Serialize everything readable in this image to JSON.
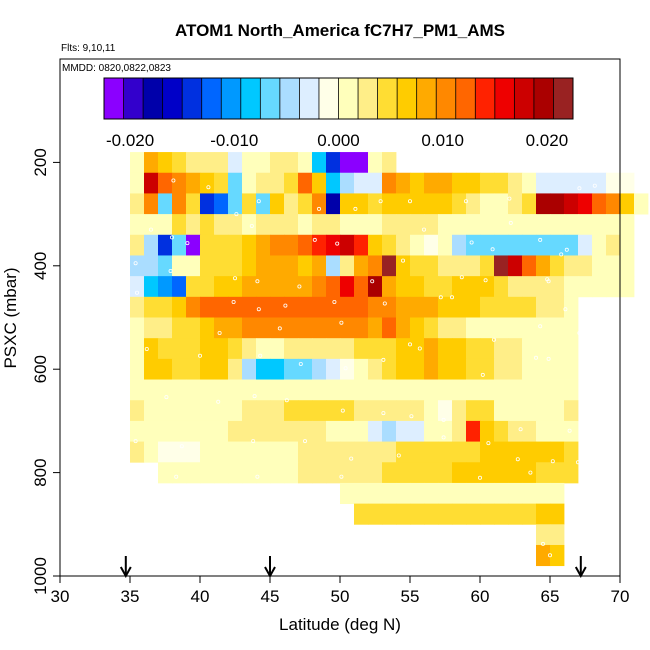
{
  "chart_data": {
    "type": "heatmap",
    "title": "ATOM1 North_America fC7H7_PM1_AMS",
    "flights_label": "Flts: 9,10,11",
    "dates_label": "MMDD: 0820,0822,0823",
    "xlabel": "Latitude (deg N)",
    "ylabel": "PSXC (mbar)",
    "xlim": [
      30,
      70
    ],
    "ylim": [
      1000,
      0
    ],
    "x_ticks": [
      30,
      35,
      40,
      45,
      50,
      55,
      60,
      65,
      70
    ],
    "y_ticks": [
      200,
      400,
      600,
      800,
      1000
    ],
    "x_tick_labels": [
      "30",
      "35",
      "40",
      "45",
      "50",
      "55",
      "60",
      "65",
      "70"
    ],
    "y_tick_labels": [
      "200",
      "400",
      "600",
      "800",
      "1000"
    ],
    "colorbar": {
      "range": [
        -0.0225,
        0.0225
      ],
      "tick_values": [
        -0.02,
        -0.01,
        0.0,
        0.01,
        0.02
      ],
      "tick_labels": [
        "-0.020",
        "-0.010",
        "0.000",
        "0.010",
        "0.020"
      ],
      "colors": [
        "#8B00FF",
        "#3300CC",
        "#0000AA",
        "#0000C8",
        "#0030E0",
        "#0066FF",
        "#0099FF",
        "#00C8FF",
        "#66D9FF",
        "#AADDFF",
        "#DDEEFF",
        "#FFFFE8",
        "#FFFFBB",
        "#FFEE88",
        "#FFDD33",
        "#FFCC00",
        "#FFAA00",
        "#FF8800",
        "#FF6600",
        "#FF2200",
        "#EE0000",
        "#CC0000",
        "#AA0000",
        "#992222"
      ]
    },
    "row_height_mbar": 40,
    "col_width_deg": 1,
    "rows": [
      {
        "p": 200,
        "start": 35,
        "values": [
          0,
          0.009,
          0.007,
          0.004,
          0.003,
          0.002,
          0.002,
          -0.003,
          0.001,
          0.001,
          0.002,
          0.002,
          0.001,
          -0.008,
          -0.014,
          -0.021,
          -0.022,
          0.001,
          0.002
        ]
      },
      {
        "p": 240,
        "start": 35,
        "values": [
          0.001,
          0.017,
          0.013,
          0.01,
          0.008,
          0.007,
          0.005,
          -0.006,
          0.001,
          0.003,
          0.003,
          0.004,
          0.013,
          0.007,
          -0.008,
          -0.004,
          -0.003,
          -0.002,
          0.011,
          0.009,
          0.007,
          0.008,
          0.008,
          0.007,
          0.006,
          0.005,
          0.004,
          0.002,
          0.001,
          -0.002,
          -0.003,
          -0.002,
          -0.002,
          -0.002,
          -0.001,
          -0.001
        ]
      },
      {
        "p": 280,
        "start": 35,
        "values": [
          0.002,
          0.011,
          -0.006,
          0.011,
          0.005,
          -0.014,
          -0.012,
          -0.006,
          0.004,
          -0.007,
          0.006,
          0.003,
          0.005,
          0.01,
          -0.018,
          0.007,
          0.006,
          0.004,
          0.007,
          0.007,
          0.007,
          0.007,
          0.006,
          0.004,
          0.002,
          0.001,
          0.0,
          0.003,
          0.004,
          0.02,
          0.02,
          0.017,
          0.015,
          0.013,
          0.011,
          0.006,
          0.001
        ]
      },
      {
        "p": 320,
        "start": 35,
        "values": [
          0.001,
          0.001,
          0.001,
          0.005,
          0.003,
          0.004,
          0.003,
          0.002,
          0.001,
          0.002,
          0.003,
          0.002,
          0.001,
          0.002,
          0.002,
          0.001,
          0.001,
          0.001,
          0.002,
          0.002,
          0.002,
          0.002,
          0.001,
          0.001,
          0.0,
          0.0,
          0.0,
          0.0,
          0.0,
          0.0,
          0.001,
          0.001,
          0.001,
          0.001,
          0.0,
          0.0
        ]
      },
      {
        "p": 360,
        "start": 35,
        "values": [
          0.002,
          -0.005,
          -0.015,
          -0.007,
          -0.021,
          0.005,
          0.004,
          0.004,
          0.007,
          0.008,
          0.01,
          0.011,
          0.012,
          0.014,
          0.016,
          0.018,
          0.014,
          0.006,
          0.004,
          0.002,
          0.001,
          -0.001,
          0.0,
          -0.005,
          -0.006,
          -0.007,
          -0.007,
          -0.007,
          -0.007,
          -0.007,
          -0.007,
          -0.006,
          -0.002,
          0.001,
          0.002,
          0.001
        ]
      },
      {
        "p": 400,
        "start": 35,
        "values": [
          -0.004,
          -0.005,
          -0.007,
          0.001,
          0.001,
          0.005,
          0.004,
          0.004,
          0.006,
          0.008,
          0.009,
          0.009,
          0.006,
          0.009,
          -0.004,
          0.003,
          0.009,
          0.011,
          0.022,
          0.007,
          0.005,
          0.004,
          0.003,
          0.003,
          0.002,
          0.004,
          0.022,
          0.018,
          0.013,
          0.009,
          0.004,
          0.002,
          0.002,
          0.001,
          0.001,
          0.0
        ]
      },
      {
        "p": 440,
        "start": 35,
        "values": [
          -0.003,
          -0.008,
          -0.01,
          -0.012,
          0.004,
          0.004,
          0.006,
          0.007,
          0.008,
          0.009,
          0.008,
          0.008,
          0.009,
          0.01,
          0.012,
          0.015,
          0.012,
          0.02,
          0.009,
          0.007,
          0.006,
          0.005,
          0.005,
          0.007,
          0.007,
          0.006,
          0.005,
          0.003,
          0.003,
          0.002,
          0.002,
          0.001,
          0.001,
          0.0,
          0.0,
          0.0
        ]
      },
      {
        "p": 480,
        "start": 35,
        "values": [
          0.002,
          0.004,
          0.005,
          0.006,
          0.01,
          0.012,
          0.013,
          0.013,
          0.013,
          0.013,
          0.013,
          0.013,
          0.013,
          0.013,
          0.013,
          0.013,
          0.012,
          0.011,
          0.01,
          0.009,
          0.009,
          0.008,
          0.007,
          0.006,
          0.006,
          0.005,
          0.005,
          0.004,
          0.004,
          0.003,
          0.002,
          0.001
        ]
      },
      {
        "p": 520,
        "start": 35,
        "values": [
          0.001,
          0.002,
          0.003,
          0.004,
          0.005,
          0.006,
          0.008,
          0.009,
          0.01,
          0.011,
          0.011,
          0.011,
          0.011,
          0.011,
          0.011,
          0.011,
          0.01,
          0.009,
          0.012,
          0.008,
          0.006,
          0.004,
          0.003,
          0.002,
          0.001,
          0.001,
          0.001,
          0.001,
          0.001,
          0.0,
          0.0,
          0.0
        ]
      },
      {
        "p": 560,
        "start": 35,
        "values": [
          0.001,
          0.006,
          0.005,
          0.005,
          0.005,
          0.006,
          0.006,
          0.004,
          0.002,
          0.001,
          0.001,
          0.002,
          0.002,
          0.002,
          0.002,
          0.003,
          0.004,
          0.004,
          0.004,
          0.006,
          0.007,
          0.008,
          0.007,
          0.006,
          0.005,
          0.004,
          0.003,
          0.002,
          0.001,
          0.001,
          0.001,
          0.0
        ]
      },
      {
        "p": 600,
        "start": 35,
        "values": [
          0.001,
          0.006,
          0.006,
          0.005,
          0.005,
          0.007,
          0.007,
          0.002,
          -0.004,
          -0.008,
          -0.008,
          -0.007,
          -0.006,
          -0.004,
          -0.002,
          -0.001,
          0.0,
          0.002,
          0.004,
          0.006,
          0.007,
          0.008,
          0.007,
          0.006,
          0.005,
          0.004,
          0.003,
          0.002,
          0.001,
          0.001,
          0.001,
          0.0
        ]
      },
      {
        "p": 640,
        "start": 35,
        "values": [
          0.001,
          0.001,
          0.001,
          0.001,
          0.001,
          0.001,
          0.001,
          0.001,
          0.0,
          0.001,
          0.001,
          0.001,
          0.001,
          0.001,
          0.001,
          0.0,
          0.0,
          0.0,
          0.001,
          0.001,
          0.001,
          0.001,
          0.0,
          0.0,
          0.0,
          0.0,
          0.0,
          0.0,
          0.0,
          0.0,
          0.0,
          0.0
        ]
      },
      {
        "p": 680,
        "start": 35,
        "values": [
          0.002,
          0.001,
          0.0,
          0.001,
          0.001,
          0.001,
          0.001,
          0.001,
          0.002,
          0.003,
          0.003,
          0.004,
          0.004,
          0.004,
          0.005,
          0.005,
          0.003,
          0.002,
          0.002,
          0.002,
          0.002,
          0.001,
          -0.001,
          0.003,
          0.004,
          0.005,
          0.001,
          0.001,
          0.001,
          0.0,
          0.0,
          0.002
        ]
      },
      {
        "p": 720,
        "start": 35,
        "values": [
          0.001,
          0.001,
          0.001,
          0.001,
          0.001,
          0.001,
          0.001,
          0.002,
          0.002,
          0.002,
          0.002,
          0.002,
          0.002,
          0.002,
          0.001,
          0.001,
          0.0,
          -0.002,
          -0.004,
          -0.003,
          -0.002,
          0.001,
          0.001,
          0.003,
          0.014,
          0.006,
          0.004,
          0.003,
          0.002,
          0.001,
          0.001,
          0.0
        ]
      },
      {
        "p": 760,
        "start": 35,
        "values": [
          0.002,
          0.001,
          -0.001,
          -0.001,
          -0.001,
          0.0,
          0.0,
          0.001,
          0.001,
          0.001,
          0.001,
          0.001,
          0.002,
          0.002,
          0.002,
          0.002,
          0.003,
          0.003,
          0.003,
          0.004,
          0.004,
          0.005,
          0.005,
          0.005,
          0.005,
          0.006,
          0.006,
          0.006,
          0.006,
          0.006,
          0.006,
          0.005
        ]
      },
      {
        "p": 800,
        "start": 37,
        "values": [
          0.001,
          0.001,
          0.001,
          0.001,
          0.001,
          0.001,
          0.001,
          0.001,
          0.001,
          0.001,
          0.002,
          0.002,
          0.002,
          0.003,
          0.003,
          0.003,
          0.004,
          0.004,
          0.004,
          0.005,
          0.005,
          0.006,
          0.006,
          0.006,
          0.006,
          0.006,
          0.006,
          0.005,
          0.005,
          0.005
        ]
      },
      {
        "p": 840,
        "start": 50,
        "values": [
          0.001,
          0.001,
          0.001,
          0.001,
          0.001,
          0.001,
          0.001,
          0.001,
          0.001,
          0.001,
          0.001,
          0.001,
          0.001,
          0.001,
          0.001,
          0.001
        ]
      },
      {
        "p": 880,
        "start": 51,
        "values": [
          0.004,
          0.004,
          0.004,
          0.004,
          0.004,
          0.004,
          0.004,
          0.004,
          0.004,
          0.005,
          0.005,
          0.005,
          0.005,
          0.006,
          0.006
        ]
      },
      {
        "p": 920,
        "start": 64,
        "values": [
          0.003,
          0.002
        ]
      },
      {
        "p": 960,
        "start": 64,
        "values": [
          0.009,
          0.006
        ]
      }
    ],
    "sample_points": [
      [
        38.1,
        235
      ],
      [
        40.6,
        248
      ],
      [
        42.6,
        300
      ],
      [
        44.2,
        275
      ],
      [
        48.5,
        290
      ],
      [
        51.1,
        290
      ],
      [
        52.9,
        275
      ],
      [
        55.0,
        275
      ],
      [
        59.0,
        275
      ],
      [
        62.1,
        270
      ],
      [
        67.1,
        250
      ],
      [
        68.2,
        245
      ],
      [
        36.5,
        330
      ],
      [
        38.0,
        345
      ],
      [
        39.1,
        356
      ],
      [
        43.7,
        323
      ],
      [
        48.2,
        350
      ],
      [
        49.8,
        357
      ],
      [
        59.4,
        355
      ],
      [
        60.9,
        368
      ],
      [
        56.0,
        330
      ],
      [
        62.2,
        317
      ],
      [
        64.3,
        350
      ],
      [
        65.8,
        378
      ],
      [
        66.2,
        369
      ],
      [
        35.4,
        395
      ],
      [
        37.9,
        410
      ],
      [
        42.5,
        424
      ],
      [
        44.1,
        430
      ],
      [
        47.1,
        440
      ],
      [
        52.3,
        430
      ],
      [
        54.5,
        390
      ],
      [
        58.7,
        422
      ],
      [
        60.4,
        428
      ],
      [
        64.8,
        426
      ],
      [
        64.9,
        430
      ],
      [
        35.5,
        452
      ],
      [
        42.4,
        470
      ],
      [
        44.2,
        484
      ],
      [
        46.1,
        477
      ],
      [
        49.6,
        470
      ],
      [
        53.2,
        473
      ],
      [
        57.2,
        461
      ],
      [
        58.0,
        461
      ],
      [
        66.1,
        484
      ],
      [
        34.8,
        521
      ],
      [
        41.4,
        530
      ],
      [
        45.7,
        521
      ],
      [
        50.1,
        510
      ],
      [
        55.0,
        552
      ],
      [
        61.0,
        543
      ],
      [
        64.3,
        517
      ],
      [
        67.1,
        530
      ],
      [
        36.2,
        561
      ],
      [
        40.0,
        574
      ],
      [
        44.3,
        574
      ],
      [
        47.2,
        590
      ],
      [
        50.4,
        598
      ],
      [
        53.1,
        582
      ],
      [
        55.7,
        560
      ],
      [
        60.2,
        611
      ],
      [
        64.0,
        578
      ],
      [
        64.9,
        580
      ],
      [
        34.8,
        641
      ],
      [
        37.6,
        654
      ],
      [
        41.3,
        663
      ],
      [
        43.9,
        652
      ],
      [
        46.2,
        660
      ],
      [
        50.2,
        680
      ],
      [
        53.1,
        685
      ],
      [
        55.1,
        691
      ],
      [
        57.4,
        698
      ],
      [
        62.9,
        716
      ],
      [
        66.4,
        719
      ],
      [
        35.4,
        739
      ],
      [
        38.7,
        749
      ],
      [
        43.8,
        739
      ],
      [
        47.5,
        739
      ],
      [
        50.8,
        773
      ],
      [
        54.2,
        767
      ],
      [
        57.4,
        732
      ],
      [
        60.6,
        743
      ],
      [
        62.7,
        774
      ],
      [
        65.2,
        778
      ],
      [
        67.0,
        780
      ],
      [
        34.8,
        800
      ],
      [
        38.3,
        808
      ],
      [
        44.1,
        808
      ],
      [
        50.1,
        808
      ],
      [
        60.0,
        810
      ],
      [
        63.6,
        800
      ],
      [
        64.5,
        938
      ],
      [
        65.0,
        960
      ]
    ],
    "flight_markers_latitude": [
      34.7,
      45.0,
      67.2
    ]
  }
}
